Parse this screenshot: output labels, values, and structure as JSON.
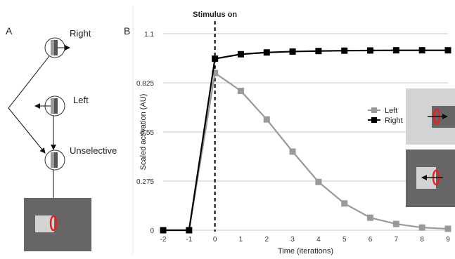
{
  "panel_a": {
    "letter": "A",
    "neurons": [
      {
        "label": "Right"
      },
      {
        "label": "Left"
      },
      {
        "label": "Unselective"
      }
    ]
  },
  "panel_b": {
    "letter": "B",
    "annotation": "Stimulus on"
  },
  "colors": {
    "left": "#999999",
    "right": "#000000",
    "stimulus_dark": "#666666",
    "stimulus_light": "#d3d3d3",
    "receptive_field": "#e8201f"
  },
  "chart_data": {
    "type": "line",
    "xlabel": "Time (iterations)",
    "ylabel": "Scaled activation (AU)",
    "x": [
      -2,
      -1,
      0,
      1,
      2,
      3,
      4,
      5,
      6,
      7,
      8,
      9
    ],
    "xticks": [
      "-2",
      "-1",
      "0",
      "1",
      "2",
      "3",
      "4",
      "5",
      "6",
      "7",
      "8",
      "9"
    ],
    "yticks": [
      "0",
      "0.275",
      "0.55",
      "0.825",
      "1.1"
    ],
    "ytick_values": [
      0,
      0.275,
      0.55,
      0.825,
      1.1
    ],
    "ylim": [
      0,
      1.1
    ],
    "xlim": [
      -2,
      9
    ],
    "grid": true,
    "legend_position": "right",
    "stimulus_onset_x": 0,
    "series": [
      {
        "name": "Left",
        "color": "#999999",
        "marker": "square",
        "values": [
          0,
          0,
          0.88,
          0.78,
          0.62,
          0.44,
          0.27,
          0.15,
          0.07,
          0.035,
          0.015,
          0.008
        ]
      },
      {
        "name": "Right",
        "color": "#000000",
        "marker": "square",
        "values": [
          0,
          0,
          0.96,
          0.985,
          0.995,
          1.0,
          1.003,
          1.005,
          1.006,
          1.007,
          1.007,
          1.007
        ]
      }
    ]
  }
}
